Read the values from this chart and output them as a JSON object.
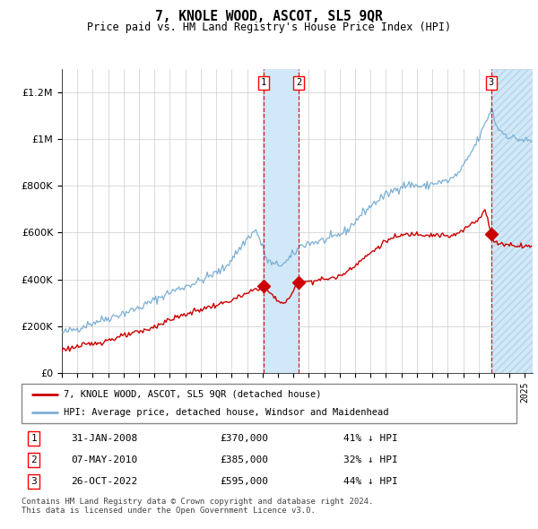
{
  "title": "7, KNOLE WOOD, ASCOT, SL5 9QR",
  "subtitle": "Price paid vs. HM Land Registry's House Price Index (HPI)",
  "footer": "Contains HM Land Registry data © Crown copyright and database right 2024.\nThis data is licensed under the Open Government Licence v3.0.",
  "legend_red": "7, KNOLE WOOD, ASCOT, SL5 9QR (detached house)",
  "legend_blue": "HPI: Average price, detached house, Windsor and Maidenhead",
  "transactions": [
    {
      "num": 1,
      "date": "31-JAN-2008",
      "price": 370000,
      "pct": "41% ↓ HPI",
      "date_x": 2008.083
    },
    {
      "num": 2,
      "date": "07-MAY-2010",
      "price": 385000,
      "pct": "32% ↓ HPI",
      "date_x": 2010.35
    },
    {
      "num": 3,
      "date": "26-OCT-2022",
      "price": 595000,
      "pct": "44% ↓ HPI",
      "date_x": 2022.82
    }
  ],
  "ylim": [
    0,
    1300000
  ],
  "xlim_start": 1995.0,
  "xlim_end": 2025.5,
  "background_color": "#ffffff",
  "grid_color": "#cccccc",
  "red_color": "#cc0000",
  "blue_color": "#7bafd4",
  "shade_color": "#d0e8f8"
}
